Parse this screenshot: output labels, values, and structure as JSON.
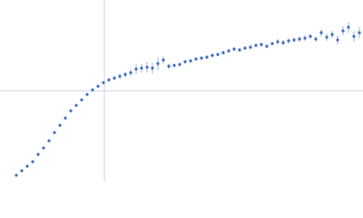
{
  "chart_data": {
    "type": "scatter",
    "color": "#3d6cc4",
    "error_color": "#9fb3d8",
    "axis_color": "#cdd6e6",
    "xlim": [
      -1.15,
      2.85
    ],
    "ylim": [
      -1,
      1
    ],
    "x": [
      -0.97,
      -0.91,
      -0.85,
      -0.79,
      -0.73,
      -0.67,
      -0.61,
      -0.55,
      -0.49,
      -0.43,
      -0.37,
      -0.31,
      -0.25,
      -0.19,
      -0.13,
      -0.07,
      -0.01,
      0.05,
      0.11,
      0.17,
      0.23,
      0.29,
      0.35,
      0.41,
      0.47,
      0.53,
      0.59,
      0.65,
      0.71,
      0.77,
      0.83,
      0.89,
      0.95,
      1.01,
      1.07,
      1.13,
      1.19,
      1.25,
      1.31,
      1.37,
      1.43,
      1.49,
      1.55,
      1.61,
      1.67,
      1.73,
      1.79,
      1.85,
      1.91,
      1.97,
      2.03,
      2.09,
      2.15,
      2.21,
      2.27,
      2.33,
      2.39,
      2.45,
      2.51,
      2.57,
      2.63,
      2.69,
      2.75,
      2.81
    ],
    "values": [
      -0.93,
      -0.88,
      -0.83,
      -0.78,
      -0.7,
      -0.63,
      -0.55,
      -0.46,
      -0.38,
      -0.3,
      -0.22,
      -0.16,
      -0.1,
      -0.04,
      0.01,
      0.05,
      0.09,
      0.12,
      0.14,
      0.16,
      0.18,
      0.2,
      0.24,
      0.25,
      0.26,
      0.25,
      0.3,
      0.34,
      0.27,
      0.28,
      0.29,
      0.32,
      0.33,
      0.35,
      0.36,
      0.37,
      0.39,
      0.4,
      0.42,
      0.44,
      0.46,
      0.45,
      0.47,
      0.48,
      0.5,
      0.51,
      0.49,
      0.52,
      0.54,
      0.53,
      0.55,
      0.56,
      0.57,
      0.58,
      0.6,
      0.57,
      0.64,
      0.59,
      0.62,
      0.56,
      0.66,
      0.7,
      0.6,
      0.64
    ],
    "errors": [
      0.005,
      0.005,
      0.005,
      0.005,
      0.005,
      0.005,
      0.005,
      0.005,
      0.005,
      0.005,
      0.005,
      0.005,
      0.01,
      0.01,
      0.01,
      0.01,
      0.01,
      0.02,
      0.02,
      0.03,
      0.03,
      0.04,
      0.05,
      0.05,
      0.06,
      0.06,
      0.07,
      0.04,
      0.03,
      0.02,
      0.02,
      0.02,
      0.02,
      0.02,
      0.02,
      0.02,
      0.02,
      0.02,
      0.02,
      0.02,
      0.02,
      0.02,
      0.02,
      0.02,
      0.02,
      0.02,
      0.02,
      0.02,
      0.03,
      0.03,
      0.03,
      0.03,
      0.03,
      0.03,
      0.03,
      0.03,
      0.04,
      0.04,
      0.04,
      0.05,
      0.05,
      0.06,
      0.06,
      0.06
    ]
  }
}
